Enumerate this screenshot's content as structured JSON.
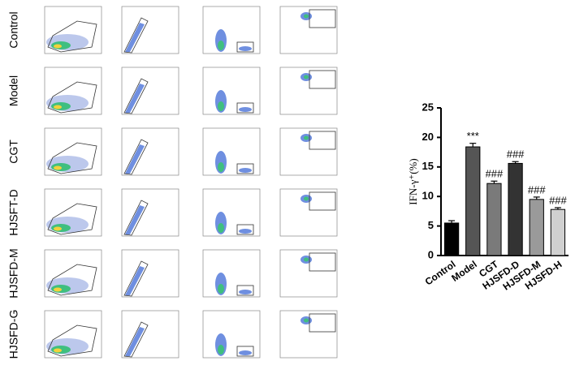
{
  "flow_panels": {
    "row_labels": [
      "Control",
      "Model",
      "CGT",
      "HJSFT-D",
      "HJSFD-M",
      "HJSFD-G"
    ]
  },
  "chart_data": {
    "type": "bar",
    "y_label": "IFN-γ⁺(%)",
    "categories": [
      "Control",
      "Model",
      "CGT",
      "HJSFD-D",
      "HJSFD-M",
      "HJSFD-H"
    ],
    "values": [
      5.5,
      18.4,
      12.2,
      15.6,
      9.5,
      7.8
    ],
    "errors": [
      0.4,
      0.6,
      0.4,
      0.3,
      0.4,
      0.3
    ],
    "colors": [
      "#000000",
      "#555555",
      "#7a7a7a",
      "#333333",
      "#9a9a9a",
      "#d0d0d0"
    ],
    "annotations": [
      null,
      "***",
      "###",
      "###",
      "###",
      "###"
    ],
    "ylim": [
      0,
      25
    ],
    "yticks": [
      0,
      5,
      10,
      15,
      20,
      25
    ]
  }
}
